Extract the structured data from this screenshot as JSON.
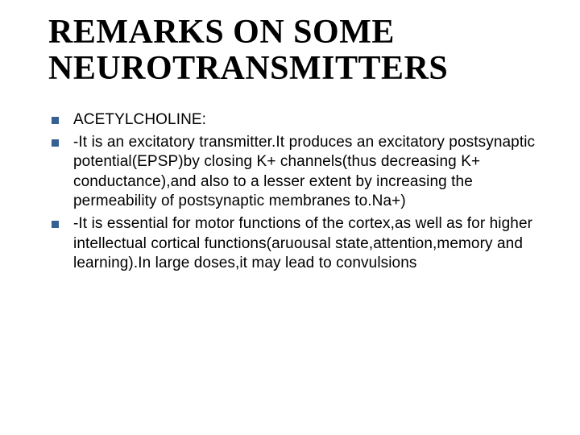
{
  "slide": {
    "title": "REMARKS ON SOME NEUROTRANSMITTERS",
    "bullets": [
      "ACETYLCHOLINE:",
      "-It is an excitatory transmitter.It produces an excitatory postsynaptic potential(EPSP)by closing K+ channels(thus decreasing K+ conductance),and also to a lesser extent by increasing the permeability of postsynaptic membranes to.Na+)",
      "-It is essential for motor functions of the cortex,as well as for higher intellectual cortical functions(aruousal state,attention,memory and learning).In large doses,it may lead to convulsions"
    ],
    "colors": {
      "background": "#ffffff",
      "title_color": "#000000",
      "body_color": "#000000",
      "bullet_color": "#376092"
    },
    "typography": {
      "title_fontsize_pt": 42,
      "title_family": "Times New Roman",
      "body_fontsize_pt": 19,
      "body_family": "Verdana"
    }
  }
}
